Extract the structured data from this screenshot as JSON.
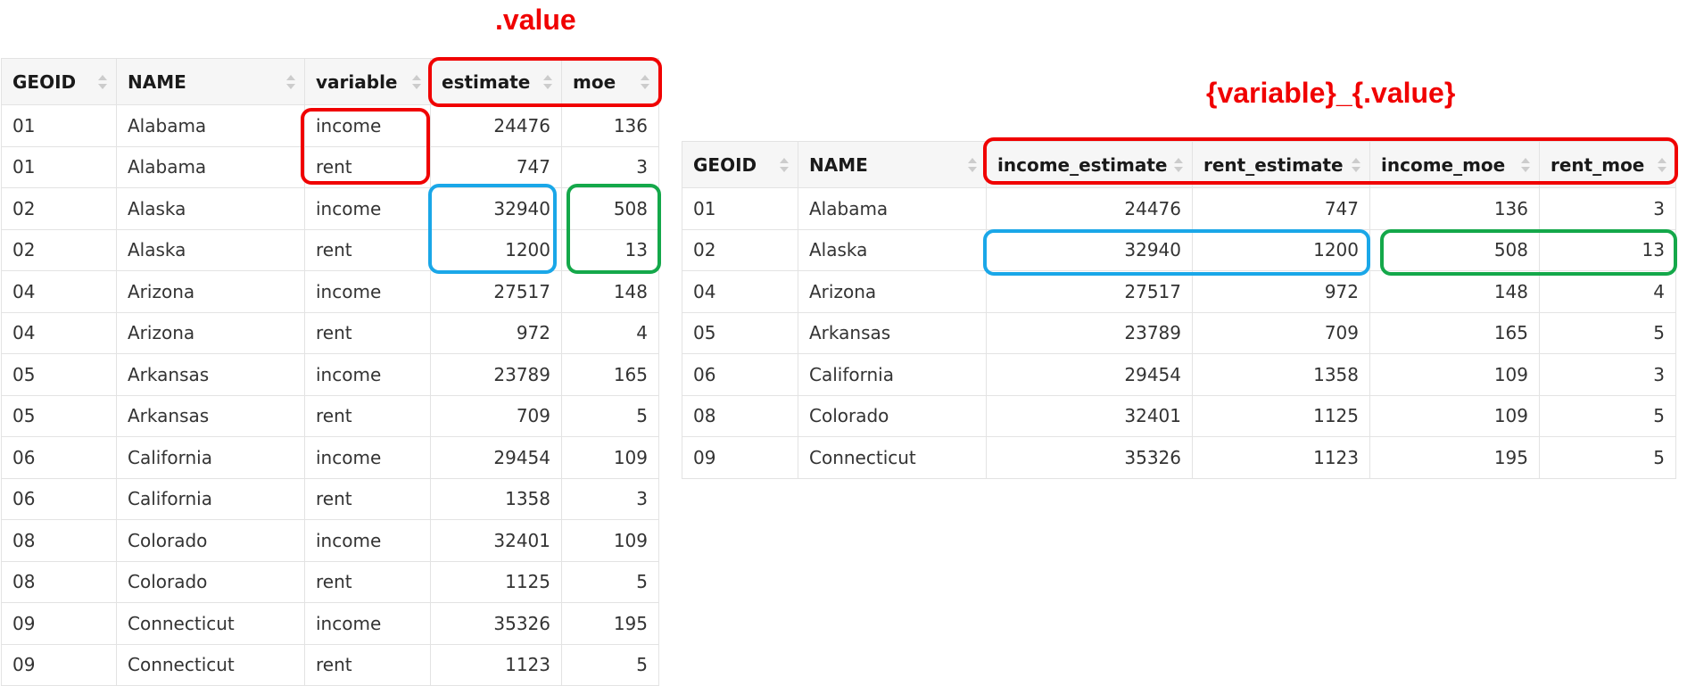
{
  "colors": {
    "annotation_red": "#f00000",
    "annotation_blue": "#1aa7e8",
    "annotation_green": "#14a84a",
    "header_bg": "#f6f6f6",
    "grid_line": "#e3e3e3"
  },
  "annotations": {
    "value_label": ".value",
    "names_pattern_label": "{variable}_{.value}"
  },
  "left_table": {
    "columns": [
      "GEOID",
      "NAME",
      "variable",
      "estimate",
      "moe"
    ],
    "rows": [
      [
        "01",
        "Alabama",
        "income",
        "24476",
        "136"
      ],
      [
        "01",
        "Alabama",
        "rent",
        "747",
        "3"
      ],
      [
        "02",
        "Alaska",
        "income",
        "32940",
        "508"
      ],
      [
        "02",
        "Alaska",
        "rent",
        "1200",
        "13"
      ],
      [
        "04",
        "Arizona",
        "income",
        "27517",
        "148"
      ],
      [
        "04",
        "Arizona",
        "rent",
        "972",
        "4"
      ],
      [
        "05",
        "Arkansas",
        "income",
        "23789",
        "165"
      ],
      [
        "05",
        "Arkansas",
        "rent",
        "709",
        "5"
      ],
      [
        "06",
        "California",
        "income",
        "29454",
        "109"
      ],
      [
        "06",
        "California",
        "rent",
        "1358",
        "3"
      ],
      [
        "08",
        "Colorado",
        "income",
        "32401",
        "109"
      ],
      [
        "08",
        "Colorado",
        "rent",
        "1125",
        "5"
      ],
      [
        "09",
        "Connecticut",
        "income",
        "35326",
        "195"
      ],
      [
        "09",
        "Connecticut",
        "rent",
        "1123",
        "5"
      ]
    ]
  },
  "right_table": {
    "columns": [
      "GEOID",
      "NAME",
      "income_estimate",
      "rent_estimate",
      "income_moe",
      "rent_moe"
    ],
    "rows": [
      [
        "01",
        "Alabama",
        "24476",
        "747",
        "136",
        "3"
      ],
      [
        "02",
        "Alaska",
        "32940",
        "1200",
        "508",
        "13"
      ],
      [
        "04",
        "Arizona",
        "27517",
        "972",
        "148",
        "4"
      ],
      [
        "05",
        "Arkansas",
        "23789",
        "709",
        "165",
        "5"
      ],
      [
        "06",
        "California",
        "29454",
        "1358",
        "109",
        "3"
      ],
      [
        "08",
        "Colorado",
        "32401",
        "1125",
        "109",
        "5"
      ],
      [
        "09",
        "Connecticut",
        "35326",
        "1123",
        "195",
        "5"
      ]
    ]
  }
}
